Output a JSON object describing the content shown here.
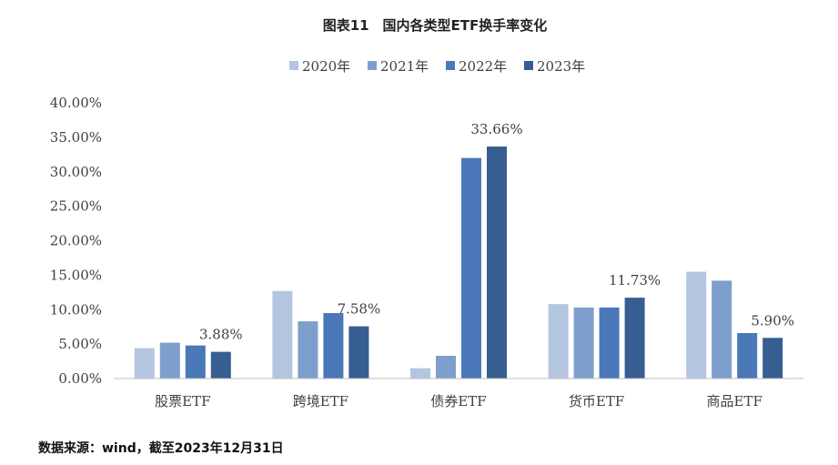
{
  "chart_data": {
    "type": "bar",
    "title": "图表11　国内各类型ETF换手率变化",
    "categories": [
      "股票ETF",
      "跨境ETF",
      "债券ETF",
      "货币ETF",
      "商品ETF"
    ],
    "series": [
      {
        "name": "2020年",
        "color": "#b4c5e0",
        "values": [
          4.4,
          12.7,
          1.5,
          10.8,
          15.5
        ]
      },
      {
        "name": "2021年",
        "color": "#7e9fcd",
        "values": [
          5.2,
          8.3,
          3.3,
          10.3,
          14.2
        ]
      },
      {
        "name": "2022年",
        "color": "#4a78b8",
        "values": [
          4.8,
          9.5,
          32.0,
          10.3,
          6.6
        ]
      },
      {
        "name": "2023年",
        "color": "#375e91",
        "values": [
          3.88,
          7.58,
          33.66,
          11.73,
          5.9
        ]
      }
    ],
    "data_labels": [
      {
        "series": 3,
        "category": 0,
        "text": "3.88%"
      },
      {
        "series": 3,
        "category": 1,
        "text": "7.58%"
      },
      {
        "series": 3,
        "category": 2,
        "text": "33.66%"
      },
      {
        "series": 3,
        "category": 3,
        "text": "11.73%"
      },
      {
        "series": 3,
        "category": 4,
        "text": "5.90%"
      }
    ],
    "yticks": [
      "0.00%",
      "5.00%",
      "10.00%",
      "15.00%",
      "20.00%",
      "25.00%",
      "30.00%",
      "35.00%",
      "40.00%"
    ],
    "ylim": [
      0,
      40
    ],
    "legend_position": "top",
    "grid": false
  },
  "source": "数据来源：wind，截至2023年12月31日"
}
